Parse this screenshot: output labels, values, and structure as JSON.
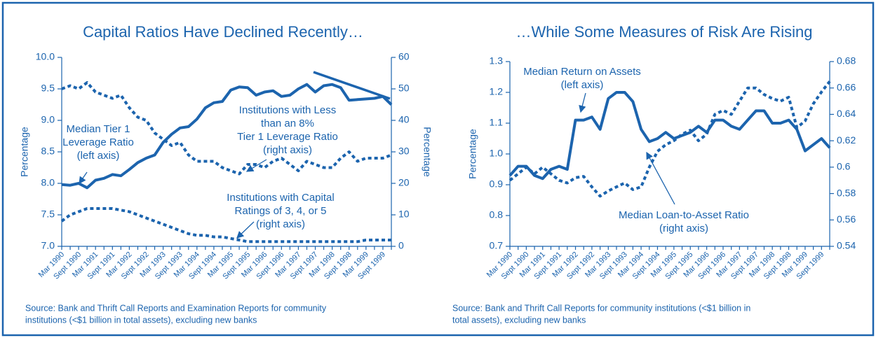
{
  "chart_data": [
    {
      "type": "line",
      "title": "Capital Ratios Have Declined Recently…",
      "ylabel": "Percentage",
      "y2label": "Percentage",
      "categories": [
        "Mar 1990",
        null,
        "Sept 1990",
        null,
        "Mar 1991",
        null,
        "Sept 1991",
        null,
        "Mar 1992",
        null,
        "Sept 1992",
        null,
        "Mar 1993",
        null,
        "Sept 1993",
        null,
        "Mar 1994",
        null,
        "Sept 1994",
        null,
        "Mar 1995",
        null,
        "Sept 1995",
        null,
        "Mar 1996",
        null,
        "Sept 1996",
        null,
        "Mar 1997",
        null,
        "Sept 1997",
        null,
        "Mar 1998",
        null,
        "Sept 1998",
        null,
        "Mar 1999",
        null,
        "Sept 1999",
        null
      ],
      "ylim": [
        7.0,
        10.0
      ],
      "yticks": [
        {
          "value": 7,
          "label": "7.0"
        },
        7.5,
        {
          "value": 8,
          "label": "8.0"
        },
        8.5,
        {
          "value": 9,
          "label": "9.0"
        },
        9.5,
        {
          "value": 10,
          "label": "10.0"
        }
      ],
      "y2lim": [
        0,
        60
      ],
      "y2ticks": [
        0,
        10,
        20,
        30,
        40,
        50,
        60
      ],
      "series": [
        {
          "name": "Median Tier 1 Leverage Ratio",
          "color": "#1c64ae",
          "line_style": "solid",
          "values": [
            7.98,
            7.97,
            8.0,
            7.93,
            8.05,
            8.08,
            8.14,
            8.12,
            8.22,
            8.33,
            8.4,
            8.45,
            8.65,
            8.78,
            8.88,
            8.9,
            9.02,
            9.2,
            9.28,
            9.3,
            9.48,
            9.53,
            9.52,
            9.4,
            9.45,
            9.47,
            9.38,
            9.4,
            9.5,
            9.57,
            9.45,
            9.55,
            9.57,
            9.52,
            9.32,
            9.33,
            9.34,
            9.35,
            9.38,
            9.25
          ]
        },
        {
          "name": "Institutions with Less than an 8% Tier 1 Leverage Ratio",
          "color": "#1c64ae",
          "line_style": "dotted",
          "axis": "y2",
          "values": [
            50,
            51,
            50,
            52,
            49,
            48,
            47,
            48,
            44,
            41,
            40,
            36,
            34,
            32,
            33,
            29,
            27,
            27,
            27,
            25,
            24,
            23,
            26,
            26,
            25,
            27,
            28,
            26,
            24,
            27,
            26,
            25,
            25,
            28,
            30,
            27,
            28,
            28,
            28,
            29
          ]
        },
        {
          "name": "Institutions with Capital Ratings of 3, 4, or 5",
          "color": "#1c64ae",
          "line_style": "dotted",
          "axis": "y2",
          "values": [
            8,
            10,
            11,
            12,
            12,
            12,
            12,
            11.5,
            11,
            10,
            9,
            8,
            7,
            6,
            5,
            4,
            3.5,
            3.5,
            3,
            3,
            2.5,
            2,
            1.5,
            1.5,
            1.5,
            1.5,
            1.5,
            1.5,
            1.5,
            1.5,
            1.5,
            1.5,
            1.5,
            1.5,
            1.5,
            1.5,
            2,
            2,
            2,
            2
          ]
        }
      ],
      "annotations": [
        {
          "lines": [
            "Median Tier 1",
            "Leverage Ratio",
            "(left axis)"
          ]
        },
        {
          "lines": [
            "Institutions with Less",
            "than an 8%",
            "Tier 1 Leverage Ratio",
            "(right axis)"
          ]
        },
        {
          "lines": [
            "Institutions with Capital",
            "Ratings of 3, 4, or 5",
            "(right axis)"
          ]
        }
      ],
      "source": [
        "Source: Bank and Thrift Call Reports and Examination Reports for community",
        "institutions (<$1 billion in total assets), excluding new banks"
      ]
    },
    {
      "type": "line",
      "title": "…While Some Measures of Risk Are Rising",
      "ylabel": "Percentage",
      "categories": [
        "Mar 1990",
        null,
        "Sept 1990",
        null,
        "Mar 1991",
        null,
        "Sept 1991",
        null,
        "Mar 1992",
        null,
        "Sept 1992",
        null,
        "Mar 1993",
        null,
        "Sept 1993",
        null,
        "Mar 1994",
        null,
        "Sept 1994",
        null,
        "Mar 1995",
        null,
        "Sept 1995",
        null,
        "Mar 1996",
        null,
        "Sept 1996",
        null,
        "Mar 1997",
        null,
        "Sept 1997",
        null,
        "Mar 1998",
        null,
        "Sept 1998",
        null,
        "Mar 1999",
        null,
        "Sept 1999",
        null
      ],
      "ylim": [
        0.7,
        1.3
      ],
      "yticks": [
        0.7,
        0.8,
        0.9,
        {
          "value": 1,
          "label": "1.0"
        },
        1.1,
        1.2,
        1.3
      ],
      "y2lim": [
        0.54,
        0.68
      ],
      "y2ticks": [
        0.54,
        0.56,
        0.58,
        0.6,
        0.62,
        0.64,
        0.66,
        0.68
      ],
      "series": [
        {
          "name": "Median Return on Assets",
          "color": "#1c64ae",
          "line_style": "solid",
          "values": [
            0.93,
            0.96,
            0.96,
            0.93,
            0.92,
            0.95,
            0.96,
            0.95,
            1.11,
            1.11,
            1.12,
            1.08,
            1.18,
            1.2,
            1.2,
            1.17,
            1.08,
            1.04,
            1.05,
            1.07,
            1.05,
            1.06,
            1.07,
            1.09,
            1.07,
            1.11,
            1.11,
            1.09,
            1.08,
            1.11,
            1.14,
            1.14,
            1.1,
            1.1,
            1.11,
            1.08,
            1.01,
            1.03,
            1.05,
            1.02
          ]
        },
        {
          "name": "Median Loan-to-Asset Ratio",
          "color": "#1c64ae",
          "line_style": "dotted",
          "axis": "y2",
          "values": [
            0.59,
            0.595,
            0.6,
            0.595,
            0.6,
            0.595,
            0.59,
            0.588,
            0.592,
            0.593,
            0.585,
            0.578,
            0.582,
            0.585,
            0.588,
            0.583,
            0.585,
            0.6,
            0.612,
            0.617,
            0.62,
            0.625,
            0.628,
            0.62,
            0.625,
            0.64,
            0.643,
            0.64,
            0.65,
            0.66,
            0.66,
            0.655,
            0.652,
            0.65,
            0.653,
            0.63,
            0.635,
            0.648,
            0.657,
            0.665
          ]
        }
      ],
      "annotations": [
        {
          "lines": [
            "Median Return on Assets",
            "(left axis)"
          ]
        },
        {
          "lines": [
            "Median Loan-to-Asset Ratio",
            "(right axis)"
          ]
        }
      ],
      "source": [
        "Source: Bank and Thrift Call Reports for community institutions (<$1 billion in",
        "total assets), excluding new banks"
      ]
    }
  ]
}
